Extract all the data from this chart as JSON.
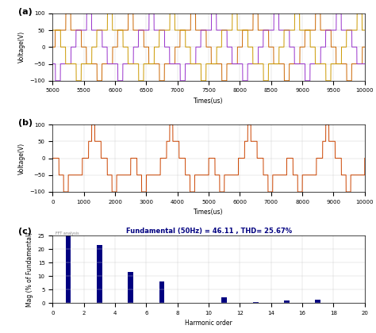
{
  "subplot_a": {
    "title": "(a)",
    "xlabel": "Times(us)",
    "ylabel": "Voltage(V)",
    "xlim": [
      5000,
      10000
    ],
    "ylim": [
      -100,
      100
    ],
    "yticks": [
      -100,
      -50,
      0,
      50,
      100
    ],
    "xticks": [
      5000,
      5500,
      6000,
      6500,
      7000,
      7500,
      8000,
      8500,
      9000,
      9500,
      10000
    ],
    "colors": [
      "#CC6600",
      "#9933CC",
      "#CC9900"
    ],
    "period": 1000,
    "amplitude": 50,
    "high_amplitude": 100
  },
  "subplot_b": {
    "title": "(b)",
    "xlabel": "Times(us)",
    "ylabel": "Voltage(V)",
    "xlim": [
      0,
      10000
    ],
    "ylim": [
      -100,
      100
    ],
    "yticks": [
      -100,
      -50,
      0,
      50,
      100
    ],
    "xticks": [
      0,
      1000,
      2000,
      3000,
      4000,
      5000,
      6000,
      7000,
      8000,
      9000,
      10000
    ],
    "color": "#CC4400",
    "period": 2500
  },
  "subplot_c": {
    "title": "Fundamental (50Hz) = 46.11 , THD= 25.67%",
    "xlabel": "Harmonic order",
    "ylabel": "Mag (% of Fundamental)",
    "xlim": [
      0,
      20
    ],
    "ylim": [
      0,
      25
    ],
    "yticks": [
      0,
      5,
      10,
      15,
      20,
      25
    ],
    "xticks": [
      0,
      2,
      4,
      6,
      8,
      10,
      12,
      14,
      16,
      18,
      20
    ],
    "harmonic_orders": [
      1,
      3,
      5,
      7,
      11,
      13,
      15,
      17
    ],
    "harmonic_values": [
      25.5,
      21.5,
      11.5,
      8.0,
      2.0,
      0.3,
      0.8,
      1.2
    ],
    "bar_color": "#000080",
    "small_label": "FFT analysis"
  }
}
